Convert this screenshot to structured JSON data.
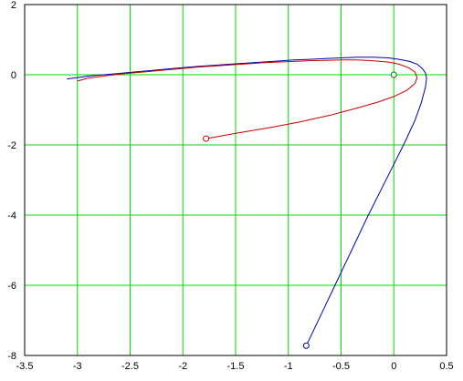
{
  "chart_data": {
    "type": "line",
    "title": "",
    "xlabel": "",
    "ylabel": "",
    "xlim": [
      -3.5,
      0.5
    ],
    "ylim": [
      -8,
      2
    ],
    "xticks": [
      -3.5,
      -3,
      -2.5,
      -2,
      -1.5,
      -1,
      -0.5,
      0,
      0.5
    ],
    "xtick_labels": [
      "-3.5",
      "-3",
      "-2.5",
      "-2",
      "-1.5",
      "-1",
      "-0.5",
      "0",
      "0.5"
    ],
    "yticks": [
      -8,
      -6,
      -4,
      -2,
      0,
      2
    ],
    "ytick_labels": [
      "-8",
      "-6",
      "-4",
      "-2",
      "0",
      "2"
    ],
    "grid": true,
    "legend": "none",
    "colors": {
      "grid": "#00dd00",
      "blue_series": "#0000aa",
      "red_series": "#cc0000",
      "origin_marker": "#007700",
      "axes": "#000000",
      "background": "#ffffff"
    },
    "series": [
      {
        "color_key": "blue_series",
        "marker_start": true,
        "x": [
          -0.83,
          -0.7,
          -0.55,
          -0.4,
          -0.25,
          -0.1,
          0.0,
          0.1,
          0.2,
          0.26,
          0.3,
          0.31,
          0.3,
          0.27,
          0.22,
          0.15,
          0.05,
          -0.05,
          -0.2,
          -0.35,
          -0.5,
          -0.65,
          -0.8,
          -0.95,
          -1.1,
          -1.25,
          -1.4,
          -1.55,
          -1.7,
          -1.85,
          -2.0,
          -2.15,
          -2.3,
          -2.45,
          -2.6,
          -2.75,
          -2.9,
          -3.0,
          -3.1
        ],
        "y": [
          -7.72,
          -6.9,
          -5.95,
          -5.0,
          -4.05,
          -3.15,
          -2.55,
          -1.95,
          -1.3,
          -0.8,
          -0.35,
          -0.1,
          0.05,
          0.18,
          0.3,
          0.38,
          0.44,
          0.48,
          0.5,
          0.5,
          0.48,
          0.46,
          0.44,
          0.42,
          0.39,
          0.36,
          0.33,
          0.3,
          0.27,
          0.24,
          0.2,
          0.16,
          0.12,
          0.08,
          0.04,
          0.0,
          -0.04,
          -0.08,
          -0.12
        ]
      },
      {
        "color_key": "red_series",
        "marker_start": true,
        "x": [
          -1.78,
          -1.5,
          -1.2,
          -0.9,
          -0.6,
          -0.35,
          -0.15,
          0.0,
          0.12,
          0.2,
          0.22,
          0.2,
          0.14,
          0.05,
          -0.05,
          -0.2,
          -0.35,
          -0.5,
          -0.65,
          -0.8,
          -0.95,
          -1.1,
          -1.25,
          -1.4,
          -1.55,
          -1.7,
          -1.85,
          -2.0,
          -2.15,
          -2.3,
          -2.45,
          -2.6,
          -2.75,
          -2.9,
          -3.0
        ],
        "y": [
          -1.82,
          -1.67,
          -1.52,
          -1.35,
          -1.15,
          -0.95,
          -0.78,
          -0.62,
          -0.45,
          -0.25,
          -0.08,
          0.08,
          0.2,
          0.3,
          0.36,
          0.4,
          0.42,
          0.42,
          0.41,
          0.4,
          0.38,
          0.36,
          0.34,
          0.31,
          0.28,
          0.25,
          0.22,
          0.18,
          0.14,
          0.1,
          0.06,
          0.02,
          -0.04,
          -0.1,
          -0.18
        ]
      }
    ],
    "markers": [
      {
        "color_key": "origin_marker",
        "x": 0.0,
        "y": 0.0
      }
    ]
  }
}
